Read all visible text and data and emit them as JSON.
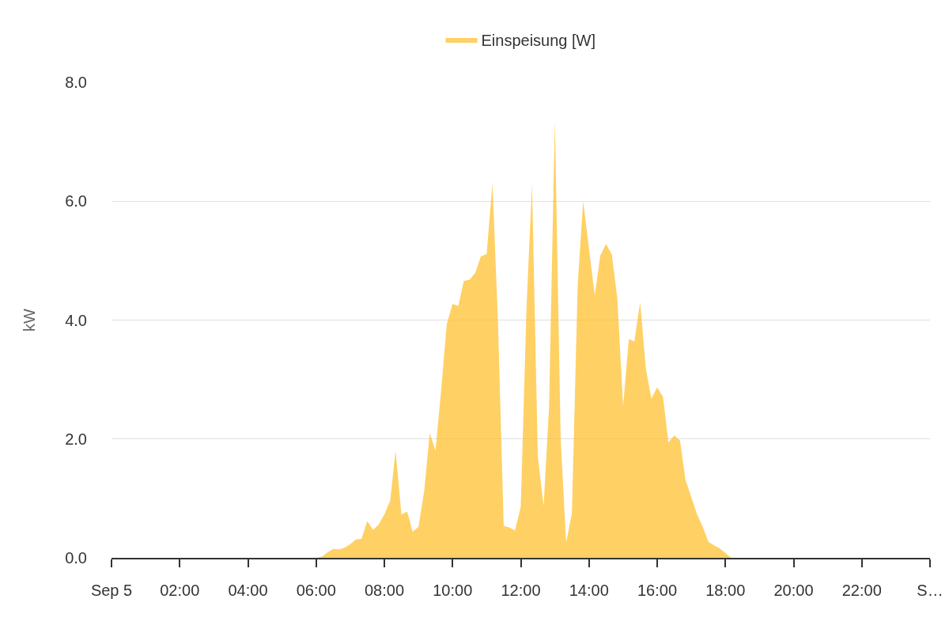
{
  "chart_data": {
    "type": "area",
    "ylabel": "kW",
    "x": [
      6,
      6.17,
      6.33,
      6.5,
      6.67,
      6.83,
      7,
      7.17,
      7.33,
      7.5,
      7.67,
      7.83,
      8,
      8.17,
      8.33,
      8.5,
      8.67,
      8.83,
      9,
      9.17,
      9.33,
      9.5,
      9.67,
      9.83,
      10,
      10.17,
      10.33,
      10.5,
      10.67,
      10.83,
      11,
      11.17,
      11.33,
      11.5,
      11.67,
      11.83,
      12,
      12.17,
      12.33,
      12.5,
      12.67,
      12.83,
      13,
      13.17,
      13.33,
      13.5,
      13.67,
      13.83,
      14,
      14.17,
      14.33,
      14.5,
      14.67,
      14.83,
      15,
      15.17,
      15.33,
      15.5,
      15.67,
      15.83,
      16,
      16.17,
      16.33,
      16.5,
      16.67,
      16.83,
      17,
      17.17,
      17.33,
      17.5,
      17.67,
      17.83,
      18,
      18.17
    ],
    "series": [
      {
        "name": "Einspeisung [W]",
        "color": "#ffc02f",
        "values": [
          0,
          0.02,
          0.09,
          0.15,
          0.14,
          0.17,
          0.23,
          0.31,
          0.32,
          0.62,
          0.47,
          0.56,
          0.73,
          0.96,
          1.8,
          0.73,
          0.78,
          0.44,
          0.52,
          1.13,
          2.1,
          1.8,
          2.85,
          3.93,
          4.27,
          4.24,
          4.66,
          4.68,
          4.8,
          5.07,
          5.11,
          6.3,
          4.0,
          0.54,
          0.51,
          0.46,
          0.86,
          4.23,
          6.29,
          1.71,
          0.87,
          2.54,
          7.35,
          2.0,
          0.26,
          0.75,
          4.6,
          6.0,
          5.2,
          4.41,
          5.08,
          5.28,
          5.1,
          4.37,
          2.55,
          3.68,
          3.64,
          4.3,
          3.17,
          2.68,
          2.87,
          2.71,
          1.94,
          2.06,
          1.97,
          1.31,
          1.02,
          0.73,
          0.53,
          0.27,
          0.21,
          0.16,
          0.08,
          0
        ]
      }
    ],
    "xlim": [
      0,
      24
    ],
    "xticks": [
      {
        "value": 0,
        "label": "Sep 5"
      },
      {
        "value": 2,
        "label": "02:00"
      },
      {
        "value": 4,
        "label": "04:00"
      },
      {
        "value": 6,
        "label": "06:00"
      },
      {
        "value": 8,
        "label": "08:00"
      },
      {
        "value": 10,
        "label": "10:00"
      },
      {
        "value": 12,
        "label": "12:00"
      },
      {
        "value": 14,
        "label": "14:00"
      },
      {
        "value": 16,
        "label": "16:00"
      },
      {
        "value": 18,
        "label": "18:00"
      },
      {
        "value": 20,
        "label": "20:00"
      },
      {
        "value": 22,
        "label": "22:00"
      },
      {
        "value": 24,
        "label": "S…"
      }
    ],
    "ylim": [
      0,
      8
    ],
    "yticks": [
      {
        "value": 0,
        "label": "0.0"
      },
      {
        "value": 2,
        "label": "2.0"
      },
      {
        "value": 4,
        "label": "4.0"
      },
      {
        "value": 6,
        "label": "6.0"
      },
      {
        "value": 8,
        "label": "8.0"
      }
    ],
    "grid": "y",
    "legend": "top",
    "marker": "none"
  }
}
